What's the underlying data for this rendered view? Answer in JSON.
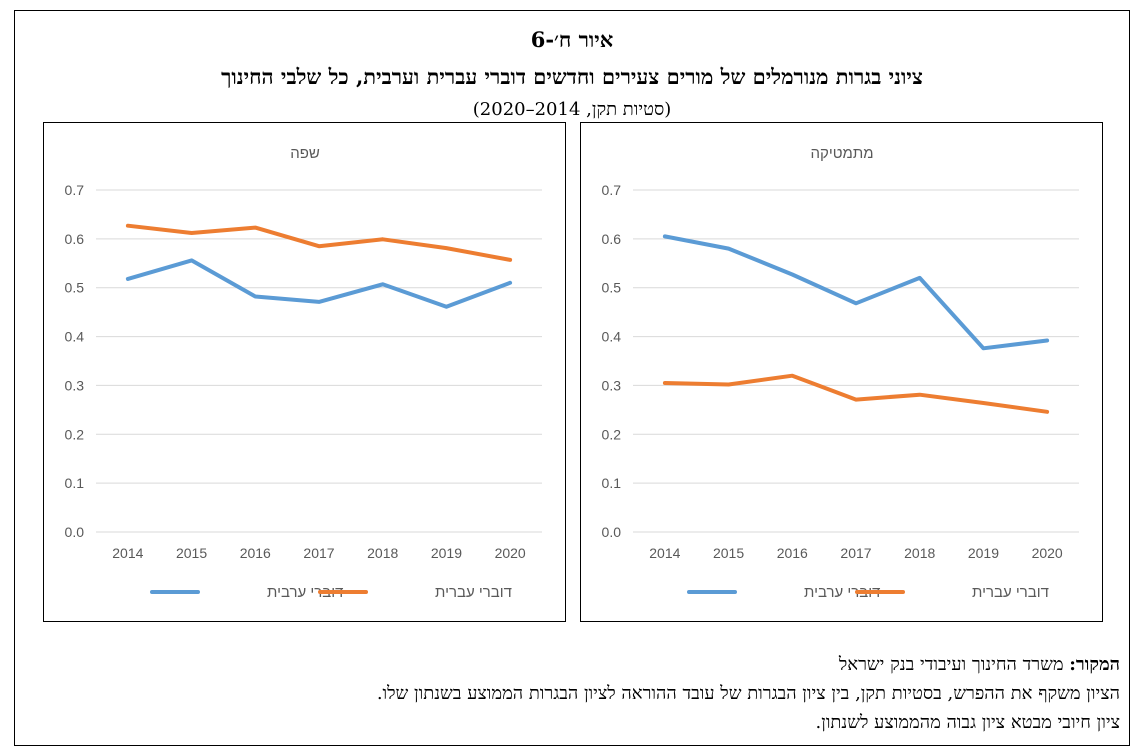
{
  "figure": {
    "number": "איור ח׳-6",
    "title": "ציוני בגרות מנורמלים של מורים צעירים וחדשים דוברי עברית וערבית, כל שלבי החינוך",
    "subtitle": "(סטיות תקן, 2014–2020)"
  },
  "colors": {
    "arabic": "#5B9BD5",
    "hebrew": "#ED7D31",
    "grid": "#D9D9D9",
    "text": "#595959"
  },
  "chart_data": [
    {
      "type": "line",
      "title": "מתמטיקה",
      "categories": [
        "2014",
        "2015",
        "2016",
        "2017",
        "2018",
        "2019",
        "2020"
      ],
      "ylim": [
        0,
        0.7
      ],
      "yticks": [
        "0.0",
        "0.1",
        "0.2",
        "0.3",
        "0.4",
        "0.5",
        "0.6",
        "0.7"
      ],
      "grid": true,
      "legend": "bottom",
      "series": [
        {
          "name": "דוברי ערבית",
          "color": "#5B9BD5",
          "values": [
            0.605,
            0.58,
            0.527,
            0.468,
            0.52,
            0.376,
            0.392
          ]
        },
        {
          "name": "דוברי עברית",
          "color": "#ED7D31",
          "values": [
            0.305,
            0.302,
            0.32,
            0.271,
            0.281,
            0.264,
            0.246
          ]
        }
      ]
    },
    {
      "type": "line",
      "title": "שפה",
      "categories": [
        "2014",
        "2015",
        "2016",
        "2017",
        "2018",
        "2019",
        "2020"
      ],
      "ylim": [
        0,
        0.7
      ],
      "yticks": [
        "0.0",
        "0.1",
        "0.2",
        "0.3",
        "0.4",
        "0.5",
        "0.6",
        "0.7"
      ],
      "grid": true,
      "legend": "bottom",
      "series": [
        {
          "name": "דוברי ערבית",
          "color": "#5B9BD5",
          "values": [
            0.518,
            0.556,
            0.482,
            0.471,
            0.507,
            0.461,
            0.51
          ]
        },
        {
          "name": "דוברי עברית",
          "color": "#ED7D31",
          "values": [
            0.627,
            0.612,
            0.623,
            0.585,
            0.599,
            0.581,
            0.557
          ]
        }
      ]
    }
  ],
  "footer": {
    "source_label": "המקור:",
    "source_text": " משרד החינוך ועיבודי בנק ישראל",
    "note1": "הציון משקף את ההפרש, בסטיות תקן, בין ציון הבגרות של עובד ההוראה לציון הבגרות הממוצע בשנתון שלו.",
    "note2": "ציון חיובי מבטא ציון גבוה מהממוצע לשנתון."
  }
}
